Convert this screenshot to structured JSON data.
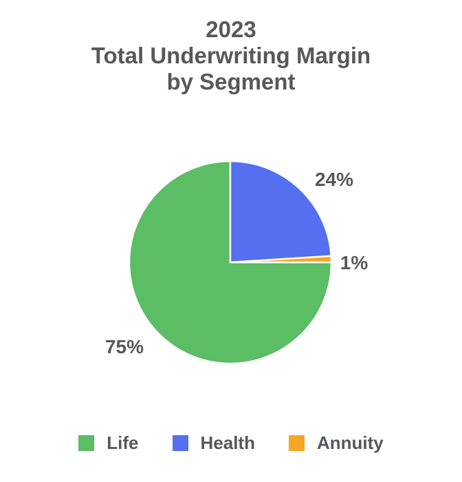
{
  "colors": {
    "background": "#FFFFFF",
    "text": "#57585C",
    "slice_border": "#FFFFFF"
  },
  "chart_data": {
    "type": "pie",
    "title": "2023 Total Underwriting Margin by Segment",
    "title_display": "2023\nTotal Underwriting Margin\nby Segment",
    "start_angle_from_top_deg": 90,
    "direction": "clockwise",
    "legend_position": "bottom",
    "data_labels": "outside-percent",
    "segments": [
      {
        "name": "Life",
        "value": 75,
        "value_label": "75%",
        "color": "#5BBD64"
      },
      {
        "name": "Health",
        "value": 24,
        "value_label": "24%",
        "color": "#5470F0"
      },
      {
        "name": "Annuity",
        "value": 1,
        "value_label": "1%",
        "color": "#F6A623"
      }
    ]
  }
}
